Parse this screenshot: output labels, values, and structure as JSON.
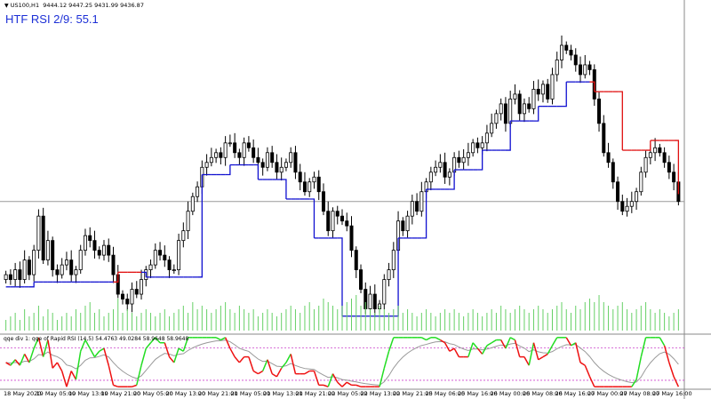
{
  "header": {
    "symbol": "US100,H1",
    "ohlc_values": "9444.12 9447.25 9431.99 9436.87",
    "indicator_title": "HTF RSI 2/9: 55.1"
  },
  "subwindow": {
    "label": "qqe div 1: qqe of Rapid RSI (14,5) 54.4763 49.0284 58.9648 58.9648"
  },
  "time_axis": {
    "labels": [
      "18 May 2020",
      "19 May 05:00",
      "19 May 13:00",
      "19 May 21:00",
      "20 May 05:00",
      "20 May 13:00",
      "20 May 21:00",
      "21 May 05:00",
      "21 May 13:00",
      "21 May 21:00",
      "22 May 05:00",
      "22 May 13:00",
      "22 May 21:00",
      "25 May 06:00",
      "25 May 16:00",
      "26 May 00:00",
      "26 May 08:00",
      "26 May 16:00",
      "27 May 00:00",
      "27 May 08:00",
      "27 May 16:00"
    ]
  },
  "colors": {
    "bull_candle": "#ffffff",
    "bear_candle": "#000000",
    "candle_outline": "#000000",
    "htf_up_line": "#1010d0",
    "htf_down_line": "#e01010",
    "volume": "#66d066",
    "rsi_up": "#22dd22",
    "rsi_down": "#ee1111",
    "rsi_signal": "#999999",
    "level_line": "#cc44cc",
    "horizontal_line": "#999999"
  },
  "chart_data": {
    "type": "candlestick",
    "symbol": "US100",
    "timeframe": "H1",
    "candles": [
      9290,
      9280,
      9300,
      9280,
      9320,
      9290,
      9340,
      9410,
      9320,
      9360,
      9300,
      9290,
      9310,
      9320,
      9290,
      9300,
      9340,
      9370,
      9360,
      9340,
      9330,
      9350,
      9330,
      9290,
      9250,
      9240,
      9230,
      9260,
      9250,
      9280,
      9300,
      9310,
      9340,
      9330,
      9320,
      9300,
      9300,
      9360,
      9380,
      9420,
      9450,
      9470,
      9510,
      9520,
      9530,
      9540,
      9530,
      9560,
      9560,
      9540,
      9530,
      9560,
      9550,
      9530,
      9520,
      9510,
      9540,
      9520,
      9500,
      9510,
      9520,
      9540,
      9500,
      9480,
      9460,
      9480,
      9490,
      9460,
      9420,
      9380,
      9420,
      9410,
      9400,
      9390,
      9340,
      9300,
      9260,
      9220,
      9250,
      9220,
      9230,
      9280,
      9300,
      9340,
      9400,
      9380,
      9410,
      9440,
      9420,
      9460,
      9480,
      9500,
      9510,
      9520,
      9490,
      9500,
      9530,
      9520,
      9530,
      9540,
      9560,
      9550,
      9560,
      9580,
      9600,
      9620,
      9640,
      9600,
      9650,
      9660,
      9620,
      9640,
      9630,
      9670,
      9660,
      9680,
      9650,
      9700,
      9730,
      9760,
      9750,
      9740,
      9720,
      9700,
      9720,
      9710,
      9650,
      9600,
      9540,
      9520,
      9480,
      9440,
      9420,
      9430,
      9440,
      9460,
      9500,
      9530,
      9540,
      9550,
      9540,
      9520,
      9500,
      9480,
      9440
    ],
    "volume_levels": [
      0.3,
      0.4,
      0.5,
      0.3,
      0.6,
      0.4,
      0.5,
      0.7,
      0.4,
      0.6,
      0.5,
      0.3,
      0.4,
      0.5,
      0.4,
      0.6,
      0.5,
      0.7,
      0.8,
      0.5,
      0.6,
      0.4,
      0.5,
      0.6,
      0.9,
      0.5,
      0.6,
      0.5,
      0.4,
      0.5,
      0.6,
      0.5,
      0.4,
      0.5,
      0.6,
      0.4,
      0.5,
      0.6,
      0.7,
      0.5,
      0.8,
      0.6,
      0.7,
      0.6,
      0.5,
      0.6,
      0.7,
      0.8,
      0.6,
      0.5,
      0.7,
      0.6,
      0.5,
      0.6,
      0.4,
      0.5,
      0.6,
      0.5,
      0.4,
      0.5,
      0.6,
      0.7,
      0.6,
      0.5,
      0.7,
      0.8,
      0.6,
      0.7,
      0.9,
      0.8,
      0.7,
      0.6,
      0.7,
      0.8,
      0.9,
      1.0,
      0.7,
      0.8,
      0.6,
      0.5,
      0.7,
      0.6,
      0.5,
      0.6,
      0.7,
      0.5,
      0.6,
      0.5,
      0.4,
      0.5,
      0.6,
      0.5,
      0.4,
      0.5,
      0.6,
      0.5,
      0.6,
      0.5,
      0.4,
      0.5,
      0.6,
      0.5,
      0.4,
      0.5,
      0.6,
      0.5,
      0.7,
      0.6,
      0.5,
      0.6,
      0.7,
      0.6,
      0.5,
      0.6,
      0.7,
      0.6,
      0.5,
      0.6,
      0.7,
      0.8,
      0.6,
      0.5,
      0.7,
      0.6,
      0.8,
      0.9,
      0.8,
      1.0,
      0.8,
      0.7,
      0.6,
      0.7,
      0.8,
      0.6,
      0.5,
      0.6,
      0.7,
      0.8,
      0.6,
      0.5,
      0.6,
      0.5,
      0.4,
      0.5,
      0.6
    ],
    "horizontal_level": 9440,
    "price_range": [
      9190,
      9780
    ],
    "sub_levels": [
      30,
      70
    ],
    "sub_range": [
      20,
      85
    ]
  }
}
